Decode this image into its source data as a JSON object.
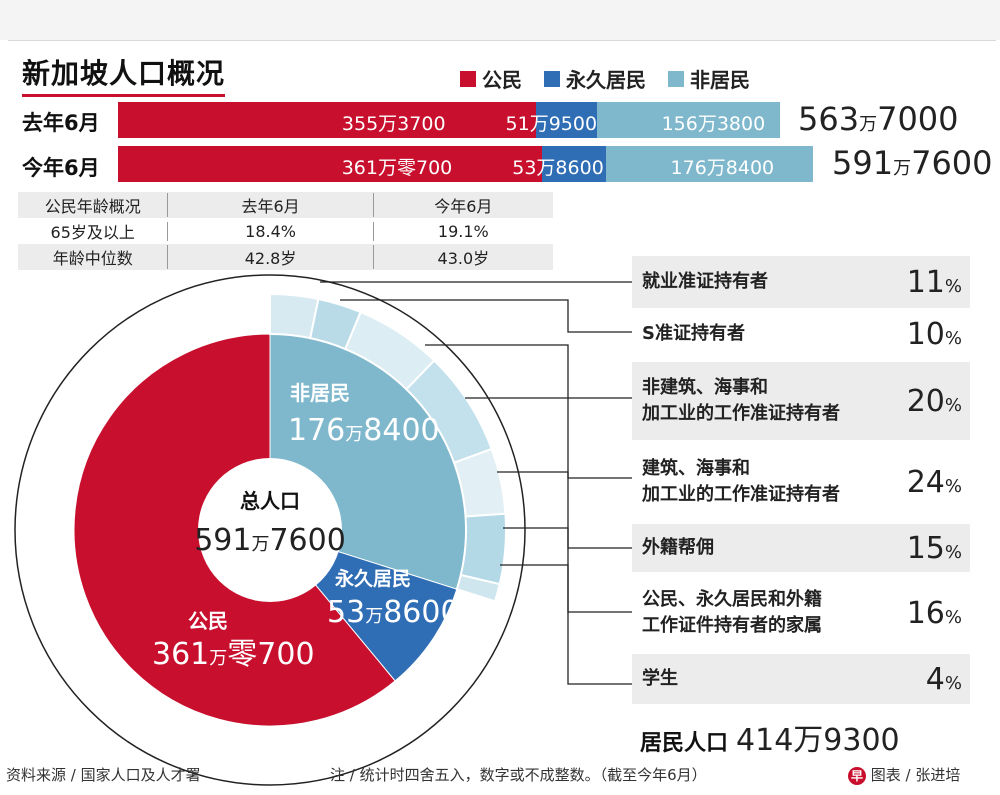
{
  "title": "新加坡人口概况",
  "legend": [
    {
      "label": "公民",
      "color": "#c8102e"
    },
    {
      "label": "永久居民",
      "color": "#2f6db5"
    },
    {
      "label": "非居民",
      "color": "#7fb8cc"
    }
  ],
  "chart_data": [
    {
      "type": "bar",
      "categories": [
        "去年6月",
        "今年6月"
      ],
      "series": [
        {
          "name": "公民",
          "values": [
            3553700,
            3610700
          ],
          "labels": [
            "355万3700",
            "361万零700"
          ]
        },
        {
          "name": "永久居民",
          "values": [
            519500,
            538600
          ],
          "labels": [
            "51万9500",
            "53万8600"
          ]
        },
        {
          "name": "非居民",
          "values": [
            1563800,
            1768400
          ],
          "labels": [
            "156万3800",
            "176万8400"
          ]
        }
      ],
      "totals": [
        {
          "num": "563",
          "unit": "万",
          "rest": "7000"
        },
        {
          "num": "591",
          "unit": "万",
          "rest": "7600"
        }
      ]
    },
    {
      "type": "pie",
      "center": {
        "title": "总人口",
        "num": "591",
        "unit": "万",
        "rest": "7600"
      },
      "slices": [
        {
          "name": "非居民",
          "value": 1768400,
          "num": "176",
          "unit": "万",
          "rest": "8400"
        },
        {
          "name": "永久居民",
          "value": 538600,
          "num": "53",
          "unit": "万",
          "rest": "8600"
        },
        {
          "name": "公民",
          "value": 3610700,
          "num": "361",
          "unit": "万",
          "rest": "零700"
        }
      ],
      "outer_ring_shares": [
        11,
        10,
        20,
        24,
        15,
        16,
        4
      ]
    },
    {
      "type": "table",
      "headers": [
        "公民年龄概况",
        "去年6月",
        "今年6月"
      ],
      "rows": [
        [
          "65岁及以上",
          "18.4%",
          "19.1%"
        ],
        [
          "年龄中位数",
          "42.8岁",
          "43.0岁"
        ]
      ]
    }
  ],
  "nonresident_breakdown": [
    {
      "label": "就业准证持有者",
      "pct": "11"
    },
    {
      "label": "S准证持有者",
      "pct": "10"
    },
    {
      "label": "非建筑、海事和\n加工业的工作准证持有者",
      "pct": "20"
    },
    {
      "label": "建筑、海事和\n加工业的工作准证持有者",
      "pct": "24"
    },
    {
      "label": "外籍帮佣",
      "pct": "15"
    },
    {
      "label": "公民、永久居民和外籍\n工作证件持有者的家属",
      "pct": "16"
    },
    {
      "label": "学生",
      "pct": "4"
    }
  ],
  "pct_sign": "%",
  "resident": {
    "label": "居民人口",
    "value": "414万9300"
  },
  "footer": {
    "source": "资料来源 / 国家人口及人才署",
    "note": "注 / 统计时四舍五入，数字或不成整数。（截至今年6月）",
    "credit": "图表 / 张进培",
    "logo_char": "早"
  }
}
